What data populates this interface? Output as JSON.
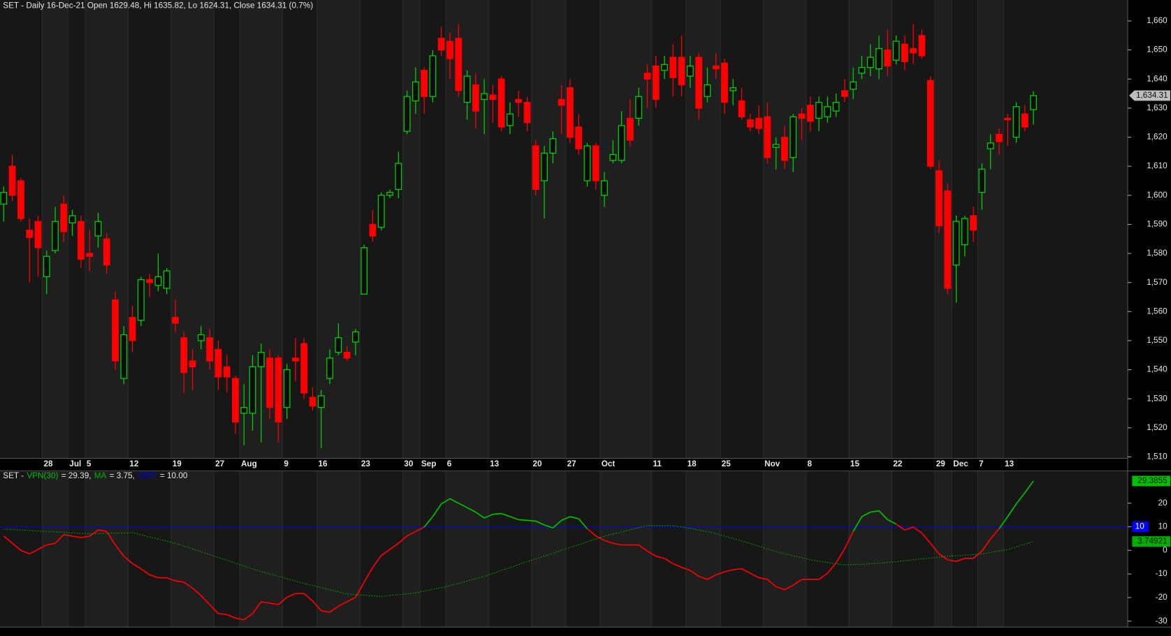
{
  "chart_data": [
    {
      "type": "candlestick",
      "title": "SET - Daily 16-Dec-21 Open 1629.48, Hi 1635.82, Lo 1624.31, Close 1634.31 (0.7%)",
      "categories": [
        null,
        null,
        null,
        null,
        null,
        "28",
        null,
        null,
        "Jul",
        null,
        "5",
        null,
        null,
        null,
        null,
        "12",
        null,
        null,
        null,
        null,
        "19",
        null,
        null,
        null,
        null,
        "27",
        null,
        null,
        "Aug",
        null,
        null,
        null,
        null,
        "9",
        null,
        null,
        null,
        "16",
        null,
        null,
        null,
        null,
        "23",
        null,
        null,
        null,
        null,
        "30",
        null,
        "Sep",
        null,
        null,
        "6",
        null,
        null,
        null,
        null,
        "13",
        null,
        null,
        null,
        null,
        "20",
        null,
        null,
        null,
        "27",
        null,
        null,
        null,
        "Oct",
        null,
        null,
        null,
        null,
        null,
        "11",
        null,
        null,
        null,
        "18",
        null,
        null,
        null,
        "25",
        null,
        null,
        null,
        null,
        "Nov",
        null,
        null,
        null,
        null,
        "8",
        null,
        null,
        null,
        null,
        "15",
        null,
        null,
        null,
        null,
        "22",
        null,
        null,
        null,
        null,
        "29",
        null,
        "Dec",
        null,
        null,
        "7",
        null,
        null,
        "13",
        null,
        null,
        null
      ],
      "open": [
        1597,
        1610,
        1605,
        1588,
        1591,
        1572,
        1581,
        1597,
        1590.5,
        1591,
        1580,
        1586,
        1585,
        1564,
        1537,
        1558,
        1557,
        1571,
        1569,
        1568,
        1558,
        1551,
        1543,
        1550,
        1551,
        1547,
        1541,
        1537,
        1525,
        1525,
        1541,
        1544,
        1544,
        1527,
        1544,
        1549,
        1530.5,
        1527,
        1537,
        1546,
        1546,
        1549.5,
        1566,
        1590,
        1589,
        1600,
        1602,
        1622,
        1632.5,
        1643,
        1634,
        1654,
        1653,
        1654,
        1632,
        1638,
        1633,
        1634.5,
        1640,
        1624,
        1633,
        1632,
        1617,
        1605,
        1614.5,
        1633,
        1637,
        1623.5,
        1605,
        1617,
        1600,
        1612,
        1612,
        1626.5,
        1626.5,
        1642,
        1644.5,
        1643,
        1647.5,
        1647.5,
        1641,
        1647.5,
        1634,
        1644.5,
        1645.5,
        1636,
        1632.5,
        1626,
        1626.5,
        1627,
        1616.5,
        1620,
        1613,
        1628,
        1631,
        1626.5,
        1627,
        1629,
        1636,
        1636.5,
        1642,
        1644,
        1643.5,
        1650,
        1646.5,
        1652,
        1650.5,
        1655,
        1639.5,
        1608.5,
        1601.5,
        1576,
        1583,
        1593,
        1601,
        1616,
        1621,
        1626.5,
        1620,
        1628,
        1629.48
      ],
      "high": [
        1603,
        1614,
        1606,
        1592,
        1593,
        1581,
        1596,
        1600,
        1595,
        1593,
        1588,
        1594,
        1587,
        1567,
        1555,
        1562,
        1572,
        1573,
        1580,
        1575,
        1564,
        1553,
        1547,
        1555,
        1554,
        1550,
        1545,
        1538,
        1535,
        1545,
        1549,
        1547,
        1545,
        1542,
        1551,
        1551,
        1534,
        1533,
        1547,
        1556,
        1548,
        1554,
        1583,
        1595,
        1601,
        1602,
        1615,
        1636,
        1644,
        1644,
        1650,
        1658,
        1656,
        1659,
        1643,
        1642,
        1640,
        1638,
        1641,
        1632,
        1636,
        1634,
        1619,
        1617,
        1622,
        1638,
        1640,
        1628,
        1618,
        1618,
        1608,
        1619,
        1629,
        1633,
        1637,
        1645,
        1648,
        1648,
        1652,
        1655,
        1648,
        1649,
        1644,
        1649,
        1647,
        1640,
        1637,
        1628,
        1631,
        1632,
        1620,
        1624,
        1628,
        1630,
        1634,
        1634,
        1634,
        1635,
        1640,
        1644,
        1648,
        1652,
        1655,
        1657,
        1655,
        1655,
        1659,
        1657,
        1641,
        1612,
        1604,
        1593,
        1593,
        1596,
        1611,
        1621,
        1623,
        1628,
        1632,
        1631,
        1635.82
      ],
      "low": [
        1591,
        1598,
        1591,
        1570,
        1572,
        1566,
        1580,
        1584,
        1586,
        1575,
        1574,
        1582,
        1573,
        1540,
        1535,
        1546,
        1555,
        1565,
        1567,
        1566,
        1553,
        1532,
        1533,
        1547,
        1540,
        1533,
        1532,
        1518,
        1514,
        1519,
        1515,
        1523,
        1515,
        1523,
        1536,
        1530,
        1526,
        1513,
        1535,
        1545,
        1543,
        1545,
        1566,
        1584,
        1588,
        1599,
        1599,
        1621,
        1628,
        1628,
        1632,
        1648,
        1640,
        1634,
        1626,
        1623,
        1621,
        1625,
        1622,
        1621,
        1627,
        1622,
        1600,
        1592,
        1611,
        1621,
        1618,
        1614,
        1603,
        1602,
        1596,
        1611,
        1611,
        1617,
        1624,
        1630,
        1630,
        1640,
        1634,
        1634,
        1637,
        1626,
        1632,
        1640,
        1628,
        1631,
        1626,
        1622,
        1621,
        1611,
        1609,
        1609,
        1608,
        1619,
        1622,
        1622,
        1625,
        1627,
        1632,
        1633,
        1640,
        1641,
        1640,
        1641,
        1645,
        1643,
        1645,
        1647,
        1609,
        1587,
        1566,
        1563,
        1579,
        1584,
        1595,
        1609,
        1614,
        1617,
        1618,
        1622,
        1624.31
      ],
      "close": [
        1601,
        1600,
        1592,
        1585.5,
        1582,
        1579,
        1591,
        1587.5,
        1593,
        1578,
        1579,
        1591,
        1576,
        1543,
        1552,
        1550,
        1571,
        1570,
        1572,
        1574,
        1556,
        1539,
        1541,
        1552,
        1543,
        1537.5,
        1537.5,
        1522,
        1527,
        1541,
        1546,
        1527,
        1522,
        1540,
        1543,
        1532,
        1527.5,
        1531,
        1544,
        1551,
        1544,
        1553,
        1582,
        1586,
        1600,
        1601,
        1611,
        1634,
        1639,
        1634,
        1648,
        1650,
        1647,
        1636,
        1641,
        1629,
        1635,
        1633,
        1623.5,
        1628,
        1632,
        1625,
        1602,
        1614.5,
        1619.5,
        1631,
        1620,
        1616,
        1617,
        1605,
        1605,
        1614,
        1624,
        1619,
        1634,
        1640,
        1633,
        1645,
        1640.5,
        1638,
        1644.5,
        1630,
        1638,
        1643.5,
        1632,
        1637,
        1627,
        1623.5,
        1623,
        1613,
        1617.5,
        1612,
        1627,
        1626.5,
        1625.5,
        1632,
        1630.5,
        1632,
        1634,
        1639,
        1644,
        1647.5,
        1650.5,
        1644.5,
        1653,
        1646,
        1649,
        1648,
        1610,
        1589.5,
        1568,
        1591,
        1592,
        1588,
        1609,
        1618,
        1618.5,
        1626,
        1630.5,
        1623.5,
        1634.31
      ],
      "up_color": "#00d000",
      "down_color": "#ff0000",
      "ylim": [
        1509.5,
        1667.2
      ],
      "yticks": [
        {
          "value": 1510,
          "label": "1,510"
        },
        {
          "value": 1520,
          "label": "1,520"
        },
        {
          "value": 1530,
          "label": "1,530"
        },
        {
          "value": 1540,
          "label": "1,540"
        },
        {
          "value": 1550,
          "label": "1,550"
        },
        {
          "value": 1560,
          "label": "1,560"
        },
        {
          "value": 1570,
          "label": "1,570"
        },
        {
          "value": 1580,
          "label": "1,580"
        },
        {
          "value": 1590,
          "label": "1,590"
        },
        {
          "value": 1600,
          "label": "1,600"
        },
        {
          "value": 1610,
          "label": "1,610"
        },
        {
          "value": 1620,
          "label": "1,620"
        },
        {
          "value": 1630,
          "label": "1,630"
        },
        {
          "value": 1640,
          "label": "1,640"
        },
        {
          "value": 1650,
          "label": "1,650"
        },
        {
          "value": 1660,
          "label": "1,660"
        }
      ],
      "last_price": {
        "value": 1634.31,
        "label": "1,634.31"
      }
    },
    {
      "type": "line",
      "title_prefix": "SET -",
      "series": [
        {
          "name": "VPN(30)",
          "legend_value": "= 29.39,",
          "color": "#ff0000",
          "up_color": "#00c000",
          "line_style": "solid",
          "values": [
            6.1,
            3,
            0,
            -1.5,
            0.4,
            2.3,
            3,
            6.7,
            6,
            5.4,
            6,
            8.6,
            8,
            2.3,
            -2.5,
            -5.6,
            -7.8,
            -10.4,
            -11.6,
            -11.6,
            -12.9,
            -13.5,
            -16,
            -19.2,
            -23,
            -26.8,
            -27.2,
            -28.7,
            -29.4,
            -26.8,
            -21.8,
            -22.4,
            -23,
            -19.9,
            -18.3,
            -18.3,
            -21.5,
            -25.6,
            -26.2,
            -23.7,
            -21.8,
            -19.9,
            -13.5,
            -7.2,
            -2.2,
            0.4,
            3,
            6.1,
            8,
            9.9,
            14.3,
            19.7,
            21.9,
            20,
            18.1,
            16.2,
            13.7,
            15.3,
            15.6,
            14.3,
            13,
            12.7,
            12.4,
            10.8,
            9.5,
            12.7,
            14.3,
            13.4,
            9.2,
            6.1,
            4.2,
            3,
            2.3,
            2.3,
            2.3,
            -0.3,
            -2.5,
            -3.4,
            -5.6,
            -7.2,
            -8.5,
            -11,
            -12.3,
            -10.4,
            -9.1,
            -8.2,
            -7.8,
            -9.7,
            -11.6,
            -12.3,
            -15.4,
            -16.7,
            -14.8,
            -12.3,
            -12.3,
            -12.3,
            -9.7,
            -5.3,
            0.7,
            8,
            14.3,
            16.2,
            16.8,
            13,
            11.1,
            8.6,
            9.9,
            7.3,
            3,
            -1.5,
            -4,
            -4.7,
            -3.4,
            -3.4,
            -0.3,
            4.8,
            9.2,
            14.3,
            19.7,
            24.4,
            29.3855
          ]
        },
        {
          "name": "MA",
          "legend_value": "= 3.75,",
          "color": "#00b000",
          "line_style": "dotted",
          "values": [
            9,
            8.8,
            8.6,
            8.4,
            8.2,
            8,
            7.8,
            7.6,
            7.4,
            7.2,
            7,
            7.1,
            7.2,
            7.3,
            7.4,
            7.5,
            6.6,
            5.7,
            4.8,
            3.9,
            3,
            1.8,
            0.6,
            -0.6,
            -1.8,
            -3,
            -4.2,
            -5.4,
            -6.6,
            -7.8,
            -9,
            -10,
            -11,
            -12,
            -13,
            -14,
            -14.9,
            -15.8,
            -16.7,
            -17.6,
            -18.5,
            -18.8,
            -19,
            -19.3,
            -19.5,
            -19.1,
            -18.8,
            -18.4,
            -18,
            -17.3,
            -16.5,
            -15.8,
            -15,
            -14,
            -13,
            -12,
            -11,
            -9.8,
            -8.5,
            -7.3,
            -6,
            -4.8,
            -3.6,
            -2.4,
            -1.2,
            0,
            1.2,
            2.4,
            3.6,
            4.8,
            6,
            6.9,
            7.8,
            8.7,
            9.6,
            10.5,
            10.5,
            10.5,
            10.5,
            9.9,
            9.3,
            8.6,
            8,
            7,
            6,
            5,
            4,
            2.9,
            1.8,
            0.6,
            -0.5,
            -1.4,
            -2.3,
            -3.1,
            -4,
            -4.6,
            -5.1,
            -5.7,
            -6.2,
            -6,
            -5.9,
            -5.7,
            -5.5,
            -5.1,
            -4.8,
            -4.4,
            -4,
            -3.6,
            -3.3,
            -2.9,
            -2.5,
            -2.3,
            -2,
            -1.8,
            -1.5,
            -0.9,
            -0.3,
            0.3,
            1.5,
            2.6,
            3.74921
          ]
        }
      ],
      "crit": {
        "name": "CRIT",
        "legend_value": "= 10.00",
        "value": 10,
        "color": "#0000ff"
      },
      "ylim": [
        -32.5,
        33.3
      ],
      "yticks": [
        20,
        10,
        0,
        -10,
        -20,
        -30
      ]
    }
  ]
}
